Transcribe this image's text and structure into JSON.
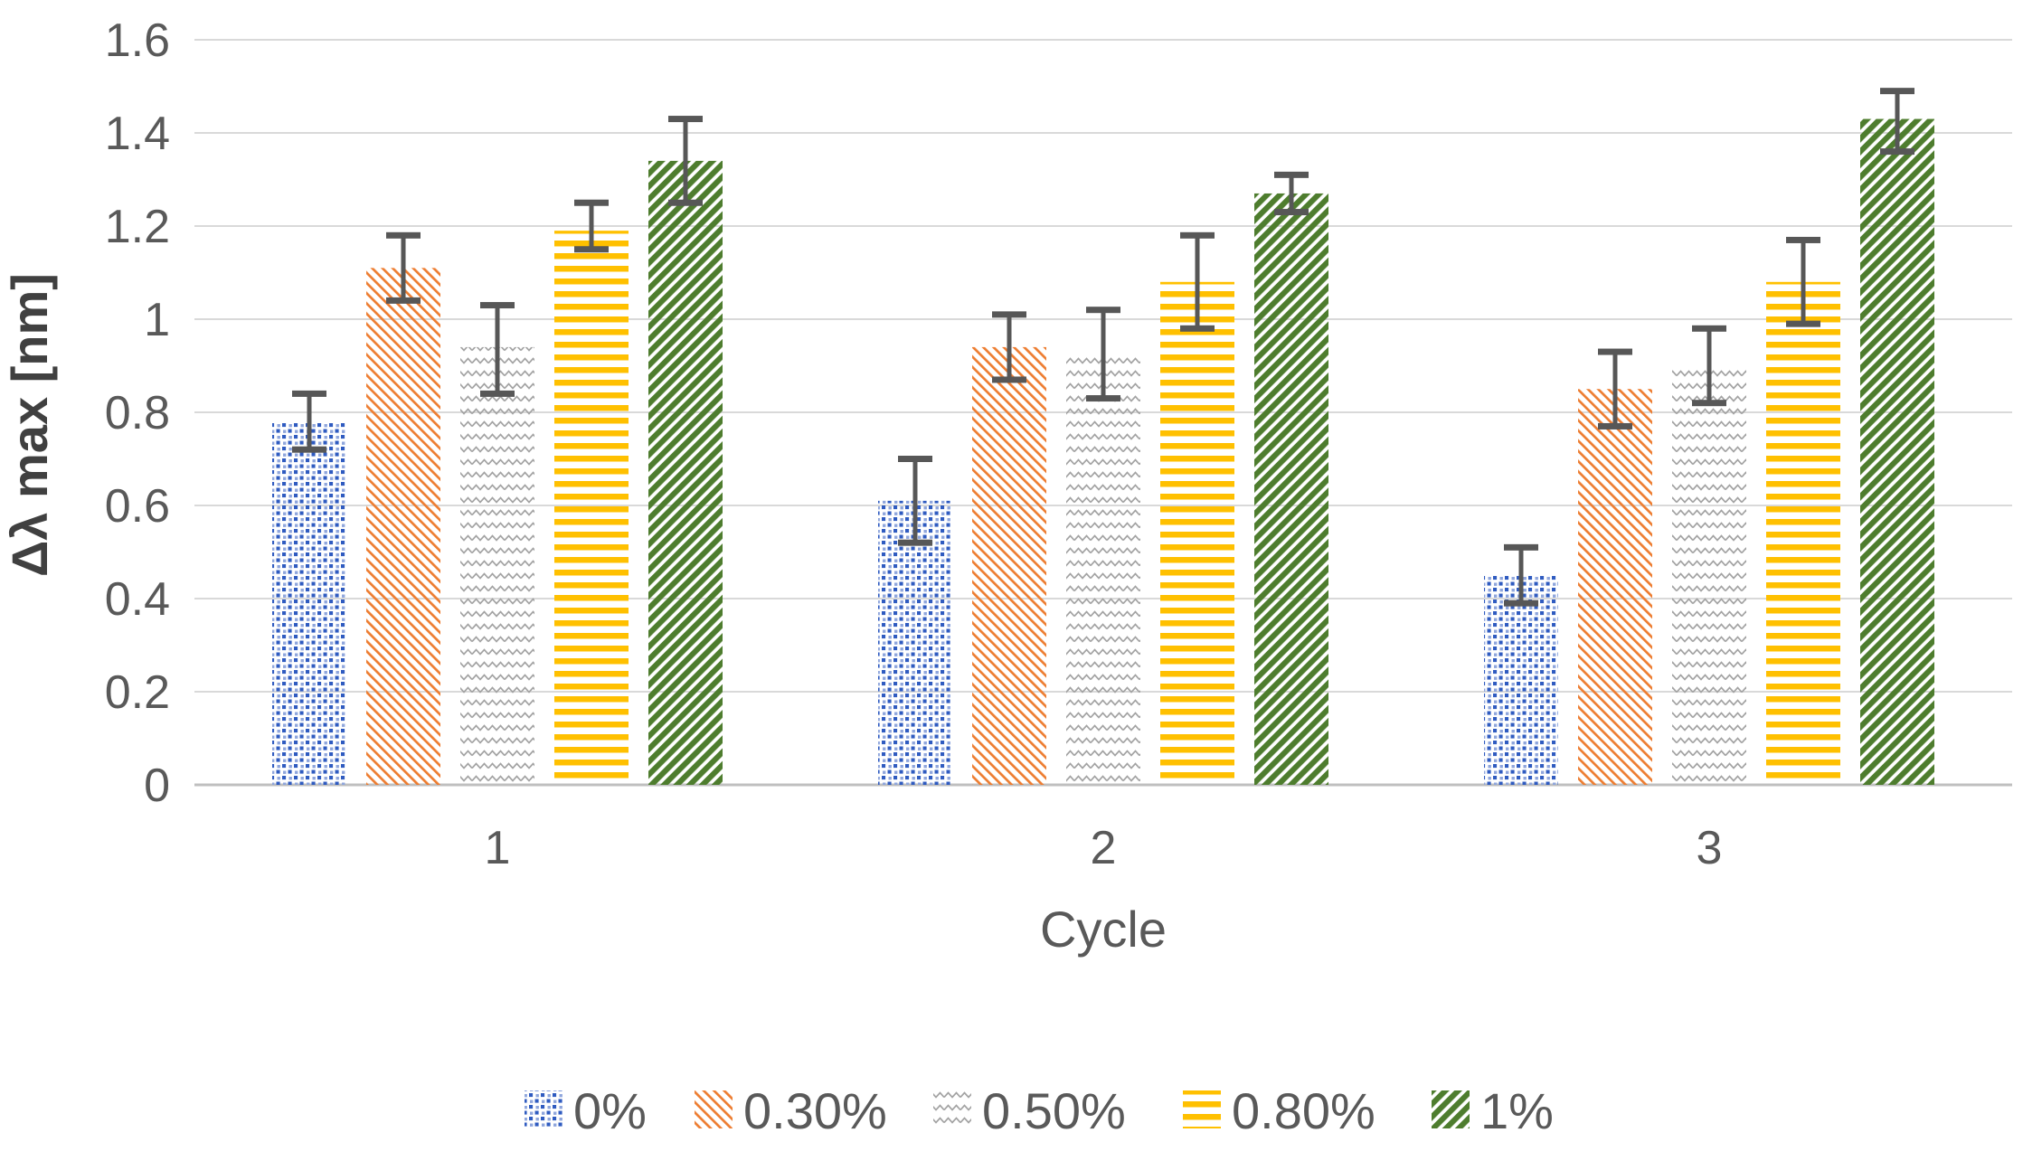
{
  "figure": {
    "background": "#FFFFFF",
    "text_color": "#595959",
    "axis_title_color": "#404040",
    "gridline_color": "#D9D9D9",
    "axis_line_color": "#BFBFBF",
    "error_bar_color": "#575757"
  },
  "chart_data": {
    "type": "bar",
    "title": "",
    "xlabel": "Cycle",
    "ylabel": "Δλ max [nm]",
    "categories": [
      "1",
      "2",
      "3"
    ],
    "ylim": [
      0,
      1.6
    ],
    "ytick_labels": [
      "0",
      "0.2",
      "0.4",
      "0.6",
      "0.8",
      "1",
      "1.2",
      "1.4",
      "1.6"
    ],
    "ytick_values": [
      0,
      0.2,
      0.4,
      0.6,
      0.8,
      1.0,
      1.2,
      1.4,
      1.6
    ],
    "grid": "horizontal",
    "legend_position": "bottom",
    "series": [
      {
        "name": "0%",
        "pattern": "dots",
        "color": "#2F5BC0",
        "color_light": "#8FA6DC",
        "values": [
          0.78,
          0.61,
          0.45
        ],
        "error_up": [
          0.84,
          0.7,
          0.51
        ],
        "error_down": [
          0.72,
          0.52,
          0.39
        ]
      },
      {
        "name": "0.30%",
        "pattern": "diagonal-down",
        "color": "#ED7D31",
        "values": [
          1.11,
          0.94,
          0.85
        ],
        "error_up": [
          1.18,
          1.01,
          0.93
        ],
        "error_down": [
          1.04,
          0.87,
          0.77
        ]
      },
      {
        "name": "0.50%",
        "pattern": "zigzag",
        "color": "#A3A3A3",
        "values": [
          0.94,
          0.92,
          0.9
        ],
        "error_up": [
          1.03,
          1.02,
          0.98
        ],
        "error_down": [
          0.84,
          0.83,
          0.82
        ]
      },
      {
        "name": "0.80%",
        "pattern": "horizontal-lines",
        "color": "#FFC000",
        "values": [
          1.19,
          1.08,
          1.08
        ],
        "error_up": [
          1.25,
          1.18,
          1.17
        ],
        "error_down": [
          1.15,
          0.98,
          0.99
        ]
      },
      {
        "name": "1%",
        "pattern": "diagonal-up",
        "color": "#4E7D2E",
        "values": [
          1.34,
          1.27,
          1.43
        ],
        "error_up": [
          1.43,
          1.31,
          1.49
        ],
        "error_down": [
          1.25,
          1.23,
          1.36
        ]
      }
    ]
  }
}
